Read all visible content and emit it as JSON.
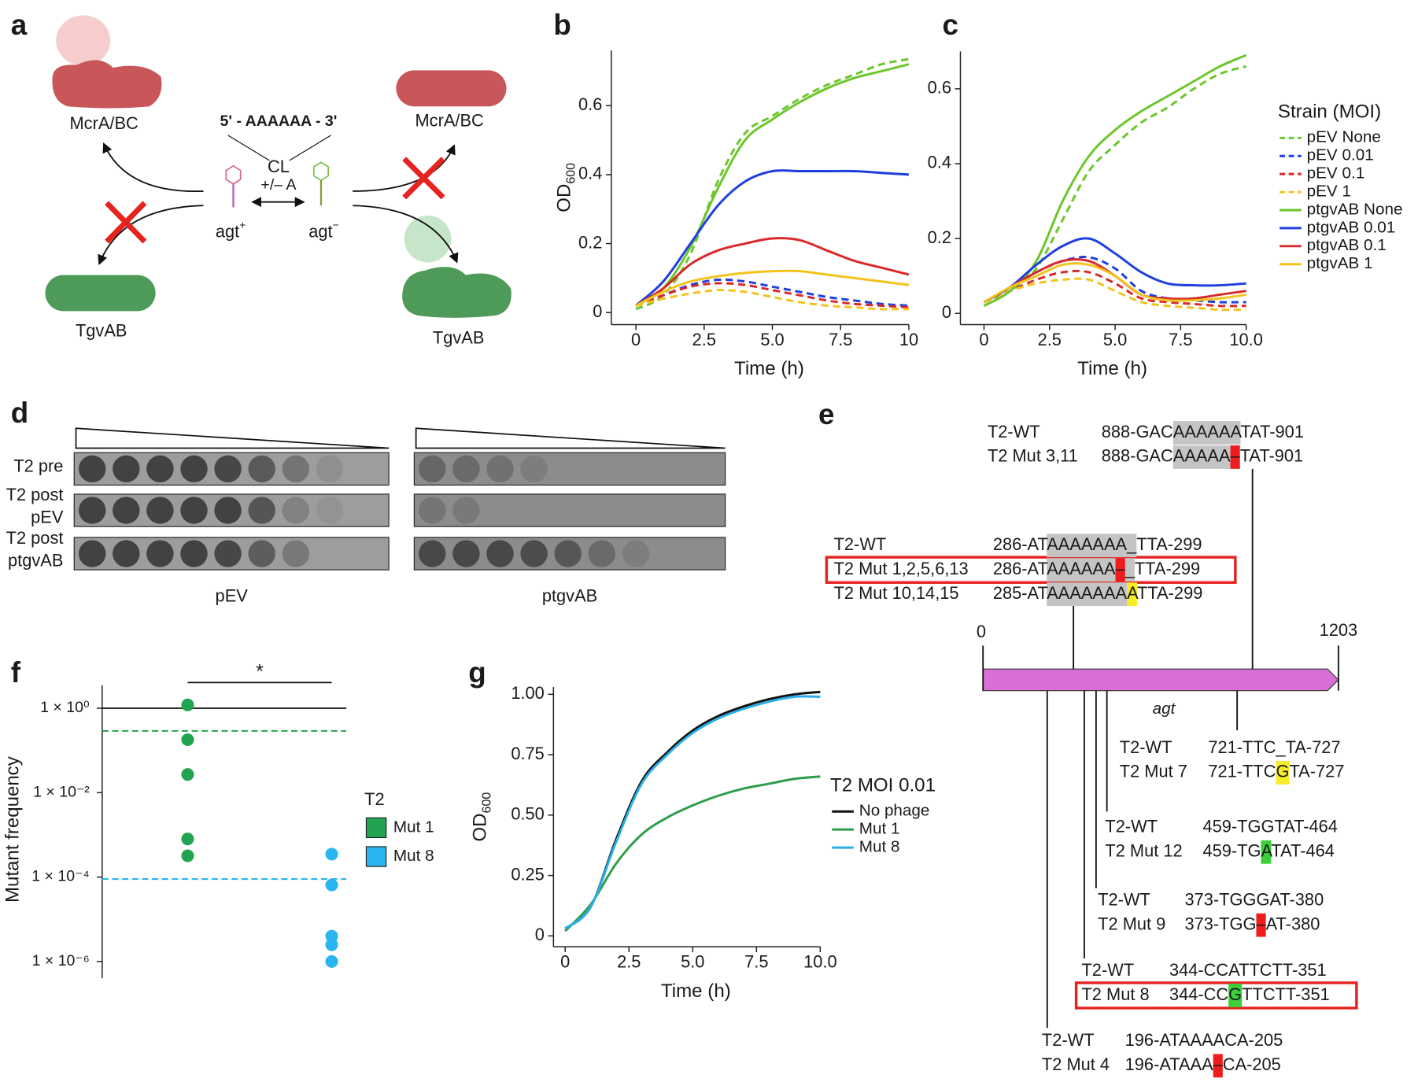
{
  "panel_labels": [
    "a",
    "b",
    "c",
    "d",
    "e",
    "f",
    "g"
  ],
  "panel_a": {
    "mcra_left": "McrA/BC",
    "mcra_right": "McrA/BC",
    "tgvab_left": "TgvAB",
    "tgvab_right": "TgvAB",
    "sequence": "5' - AAAAAA - 3'",
    "cl": "CL",
    "change": "+/– A",
    "agt_plus": {
      "text": "agt",
      "superscript": "+"
    },
    "agt_minus": {
      "text": "agt",
      "superscript": "−"
    }
  },
  "chart_data": [
    {
      "type": "line",
      "x": [
        0,
        1,
        2,
        3,
        4,
        5,
        6,
        7,
        8,
        9,
        10
      ],
      "xlim": [
        -0.9,
        10
      ],
      "ylim": [
        -0.035,
        0.76
      ],
      "xticks": [
        0,
        2.5,
        {
          "value": 5,
          "label": "5.0"
        },
        7.5,
        10
      ],
      "yticks": [
        0,
        0.2,
        0.4,
        0.6
      ],
      "xlabel": "Time (h)",
      "ylabel": {
        "text": "OD",
        "subscript": "600"
      },
      "series": [
        {
          "color": "#6cc62c",
          "dashed": true,
          "values": [
            0.01,
            0.05,
            0.17,
            0.38,
            0.52,
            0.57,
            0.62,
            0.66,
            0.69,
            0.72,
            0.735
          ]
        },
        {
          "color": "#1f3fe0",
          "dashed": true,
          "values": [
            0.02,
            0.05,
            0.08,
            0.095,
            0.09,
            0.075,
            0.06,
            0.045,
            0.035,
            0.025,
            0.02
          ]
        },
        {
          "color": "#d8292b",
          "dashed": true,
          "values": [
            0.02,
            0.05,
            0.075,
            0.085,
            0.08,
            0.065,
            0.05,
            0.035,
            0.025,
            0.02,
            0.015
          ]
        },
        {
          "color": "#f2c31c",
          "dashed": true,
          "values": [
            0.02,
            0.04,
            0.055,
            0.065,
            0.06,
            0.045,
            0.03,
            0.02,
            0.015,
            0.01,
            0.01
          ]
        },
        {
          "color": "#6cc62c",
          "dashed": false,
          "values": [
            0.02,
            0.07,
            0.19,
            0.36,
            0.5,
            0.56,
            0.61,
            0.65,
            0.68,
            0.7,
            0.72
          ]
        },
        {
          "color": "#1f3fe0",
          "dashed": false,
          "values": [
            0.02,
            0.09,
            0.2,
            0.31,
            0.38,
            0.41,
            0.41,
            0.41,
            0.41,
            0.405,
            0.4
          ]
        },
        {
          "color": "#d8292b",
          "dashed": false,
          "values": [
            0.02,
            0.07,
            0.14,
            0.18,
            0.2,
            0.215,
            0.21,
            0.18,
            0.15,
            0.13,
            0.11
          ]
        },
        {
          "color": "#f2c31c",
          "dashed": false,
          "values": [
            0.02,
            0.06,
            0.09,
            0.105,
            0.115,
            0.12,
            0.12,
            0.11,
            0.1,
            0.09,
            0.08
          ]
        }
      ]
    },
    {
      "type": "line",
      "x": [
        0,
        1,
        2,
        3,
        4,
        5,
        6,
        7,
        8,
        9,
        10
      ],
      "xlim": [
        -0.9,
        10
      ],
      "ylim": [
        -0.03,
        0.7
      ],
      "xticks": [
        0,
        2.5,
        {
          "value": 5,
          "label": "5.0"
        },
        7.5,
        {
          "value": 10,
          "label": "10.0"
        }
      ],
      "yticks": [
        0,
        0.2,
        0.4,
        0.6
      ],
      "xlabel": "Time (h)",
      "legend_title": "Strain (MOI)",
      "series": [
        {
          "name": "pEV None",
          "color": "#6cc62c",
          "dashed": true,
          "values": [
            0.02,
            0.06,
            0.12,
            0.25,
            0.38,
            0.45,
            0.51,
            0.55,
            0.6,
            0.64,
            0.66
          ]
        },
        {
          "name": "pEV 0.01",
          "color": "#1f3fe0",
          "dashed": true,
          "values": [
            0.03,
            0.07,
            0.11,
            0.14,
            0.15,
            0.12,
            0.06,
            0.04,
            0.035,
            0.03,
            0.03
          ]
        },
        {
          "name": "pEV 0.1",
          "color": "#d8292b",
          "dashed": true,
          "values": [
            0.03,
            0.06,
            0.09,
            0.11,
            0.11,
            0.08,
            0.04,
            0.03,
            0.025,
            0.02,
            0.02
          ]
        },
        {
          "name": "pEV 1",
          "color": "#f2c31c",
          "dashed": true,
          "values": [
            0.03,
            0.06,
            0.08,
            0.09,
            0.09,
            0.06,
            0.03,
            0.02,
            0.015,
            0.01,
            0.01
          ]
        },
        {
          "name": "ptgvAB None",
          "color": "#6cc62c",
          "dashed": false,
          "values": [
            0.02,
            0.06,
            0.14,
            0.3,
            0.42,
            0.49,
            0.54,
            0.58,
            0.62,
            0.66,
            0.69
          ]
        },
        {
          "name": "ptgvAB 0.01",
          "color": "#1f3fe0",
          "dashed": false,
          "values": [
            0.03,
            0.07,
            0.13,
            0.18,
            0.2,
            0.16,
            0.11,
            0.08,
            0.075,
            0.075,
            0.08
          ]
        },
        {
          "name": "ptgvAB 0.1",
          "color": "#d8292b",
          "dashed": false,
          "values": [
            0.03,
            0.07,
            0.11,
            0.14,
            0.14,
            0.1,
            0.05,
            0.04,
            0.04,
            0.05,
            0.06
          ]
        },
        {
          "name": "ptgvAB 1",
          "color": "#f2c31c",
          "dashed": false,
          "values": [
            0.03,
            0.07,
            0.1,
            0.13,
            0.13,
            0.1,
            0.05,
            0.035,
            0.035,
            0.04,
            0.05
          ]
        }
      ]
    },
    {
      "type": "strip",
      "log_y": true,
      "ylabel": "Mutant frequency",
      "ylim": [
        4e-07,
        3.5
      ],
      "yticks": [
        {
          "value": 1,
          "label": "1 × 10⁰"
        },
        {
          "value": 0.01,
          "label": "1 × 10⁻²"
        },
        {
          "value": 0.0001,
          "label": "1 × 10⁻⁴"
        },
        {
          "value": 1e-06,
          "label": "1 × 10⁻⁶"
        }
      ],
      "reference_line": 1,
      "annotation": "*",
      "legend_title": "T2",
      "series": [
        {
          "name": "Mut 1",
          "color": "#22a350",
          "values": [
            1.2,
            0.18,
            0.027,
            0.0008,
            0.00032
          ],
          "mean": 0.29
        },
        {
          "name": "Mut 8",
          "color": "#2bb5f0",
          "values": [
            0.00035,
            6.5e-05,
            4e-06,
            2.5e-06,
            1e-06
          ],
          "mean": 9e-05
        }
      ]
    },
    {
      "type": "line",
      "x": [
        0,
        1,
        2,
        3,
        4,
        5,
        6,
        7,
        8,
        9,
        10
      ],
      "xlim": [
        -0.46,
        10
      ],
      "ylim": [
        -0.045,
        1.03
      ],
      "xticks": [
        0,
        2.5,
        {
          "value": 5,
          "label": "5.0"
        },
        7.5,
        {
          "value": 10,
          "label": "10.0"
        }
      ],
      "yticks": [
        0,
        0.25,
        {
          "value": 0.5,
          "label": "0.50"
        },
        0.75,
        {
          "value": 1,
          "label": "1.00"
        }
      ],
      "xlabel": "Time (h)",
      "ylabel": {
        "text": "OD",
        "subscript": "600"
      },
      "legend_title": "T2 MOI 0.01",
      "series": [
        {
          "name": "No phage",
          "color": "#111111",
          "dashed": false,
          "values": [
            0.03,
            0.12,
            0.4,
            0.64,
            0.76,
            0.85,
            0.91,
            0.95,
            0.98,
            1.0,
            1.01
          ]
        },
        {
          "name": "Mut 1",
          "color": "#2e9e48",
          "dashed": false,
          "values": [
            0.02,
            0.13,
            0.3,
            0.42,
            0.49,
            0.54,
            0.58,
            0.61,
            0.63,
            0.65,
            0.66
          ]
        },
        {
          "name": "Mut 8",
          "color": "#29aee8",
          "dashed": false,
          "values": [
            0.03,
            0.12,
            0.39,
            0.63,
            0.75,
            0.84,
            0.9,
            0.94,
            0.97,
            0.99,
            0.99
          ]
        }
      ]
    }
  ],
  "panel_d": {
    "rows": [
      [
        "T2 pre"
      ],
      [
        "T2 post",
        "pEV"
      ],
      [
        "T2 post",
        "ptgvAB"
      ]
    ],
    "columns": [
      "pEV",
      "ptgvAB"
    ]
  },
  "panel_e": {
    "gene_start": 0,
    "gene_end": 1203,
    "gene": "agt",
    "groups": [
      [
        [
          "T2-WT",
          "888-GACAAAAAATAT-901"
        ],
        [
          "T2 Mut 3,11",
          "888-GACAAAAA–TAT-901"
        ]
      ],
      [
        [
          "T2-WT",
          "286-ATAAAAAAA_TTA-299"
        ],
        [
          "T2 Mut 1,2,5,6,13",
          "286-ATAAAAAA–_TTA-299"
        ],
        [
          "T2 Mut 10,14,15",
          "285-ATAAAAAAAATTA-299"
        ]
      ],
      [
        [
          "T2-WT",
          "721-TTC_TA-727"
        ],
        [
          "T2 Mut 7",
          "721-TTCGTA-727"
        ]
      ],
      [
        [
          "T2-WT",
          "459-TGGTAT-464"
        ],
        [
          "T2 Mut 12",
          "459-TGATAT-464"
        ]
      ],
      [
        [
          "T2-WT",
          "373-TGGGAT-380"
        ],
        [
          "T2 Mut 9",
          "373-TGG–AT-380"
        ]
      ],
      [
        [
          "T2-WT",
          "344-CCATTCTT-351"
        ],
        [
          "T2 Mut 8",
          "344-CCGTTCTT-351"
        ]
      ],
      [
        [
          "T2-WT",
          "196-ATAAAACA-205"
        ],
        [
          "T2 Mut 4",
          "196-ATAAA–CA-205"
        ]
      ]
    ]
  }
}
